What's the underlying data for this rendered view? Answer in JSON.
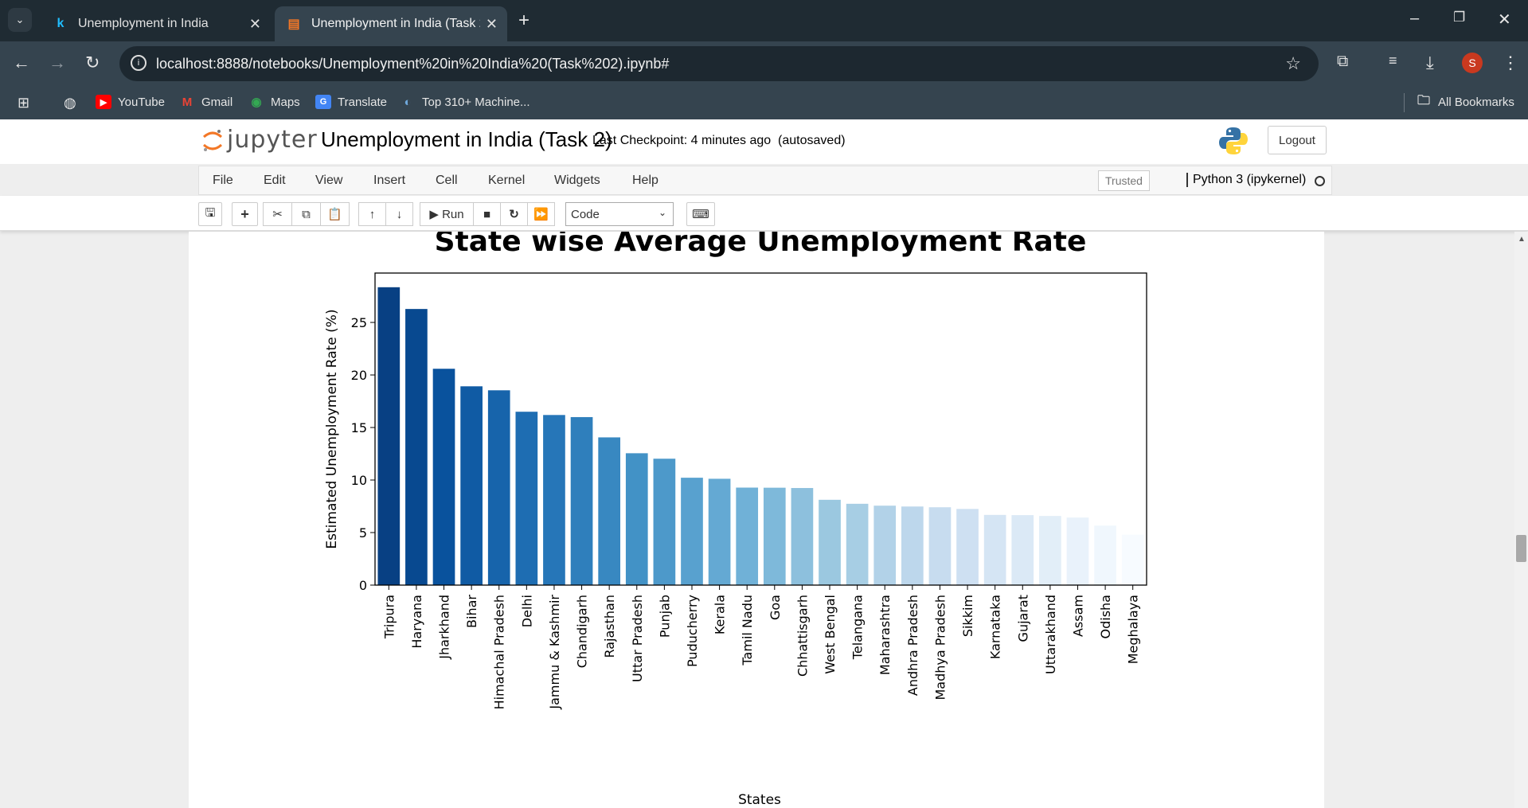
{
  "browser": {
    "tabs": [
      {
        "label": "Unemployment in India",
        "active": false
      },
      {
        "label": "Unemployment in India (Task 2)",
        "active": true
      }
    ],
    "url": "localhost:8888/notebooks/Unemployment%20in%20India%20(Task%202).ipynb#",
    "profile_initial": "S",
    "bookmarks": [
      "YouTube",
      "Gmail",
      "Maps",
      "Translate",
      "Top 310+ Machine..."
    ],
    "all_bookmarks": "All Bookmarks"
  },
  "jupyter": {
    "logo_text": "jupyter",
    "notebook_name": "Unemployment in India (Task 2)",
    "checkpoint_label": "Last Checkpoint:",
    "checkpoint_time": "4 minutes ago",
    "save_status": "(autosaved)",
    "logout": "Logout",
    "menu": [
      "File",
      "Edit",
      "View",
      "Insert",
      "Cell",
      "Kernel",
      "Widgets",
      "Help"
    ],
    "trusted": "Trusted",
    "kernel": "Python 3 (ipykernel)",
    "run_label": "Run",
    "cell_type": "Code"
  },
  "chart_data": {
    "type": "bar",
    "title": "State wise Average Unemployment Rate",
    "xlabel": "States",
    "ylabel": "Estimated Unemployment Rate (%)",
    "ylim": [
      0,
      29.7
    ],
    "yticks": [
      0,
      5,
      10,
      15,
      20,
      25
    ],
    "categories": [
      "Tripura",
      "Haryana",
      "Jharkhand",
      "Bihar",
      "Himachal Pradesh",
      "Delhi",
      "Jammu & Kashmir",
      "Chandigarh",
      "Rajasthan",
      "Uttar Pradesh",
      "Punjab",
      "Puducherry",
      "Kerala",
      "Tamil Nadu",
      "Goa",
      "Chhattisgarh",
      "West Bengal",
      "Telangana",
      "Maharashtra",
      "Andhra Pradesh",
      "Madhya Pradesh",
      "Sikkim",
      "Karnataka",
      "Gujarat",
      "Uttarakhand",
      "Assam",
      "Odisha",
      "Meghalaya"
    ],
    "values": [
      28.35,
      26.28,
      20.59,
      18.92,
      18.54,
      16.5,
      16.19,
      15.99,
      14.06,
      12.55,
      12.03,
      10.22,
      10.12,
      9.28,
      9.27,
      9.24,
      8.12,
      7.74,
      7.56,
      7.48,
      7.41,
      7.25,
      6.68,
      6.66,
      6.58,
      6.43,
      5.66,
      4.8
    ],
    "palette": "Blues_r",
    "grid": false
  }
}
